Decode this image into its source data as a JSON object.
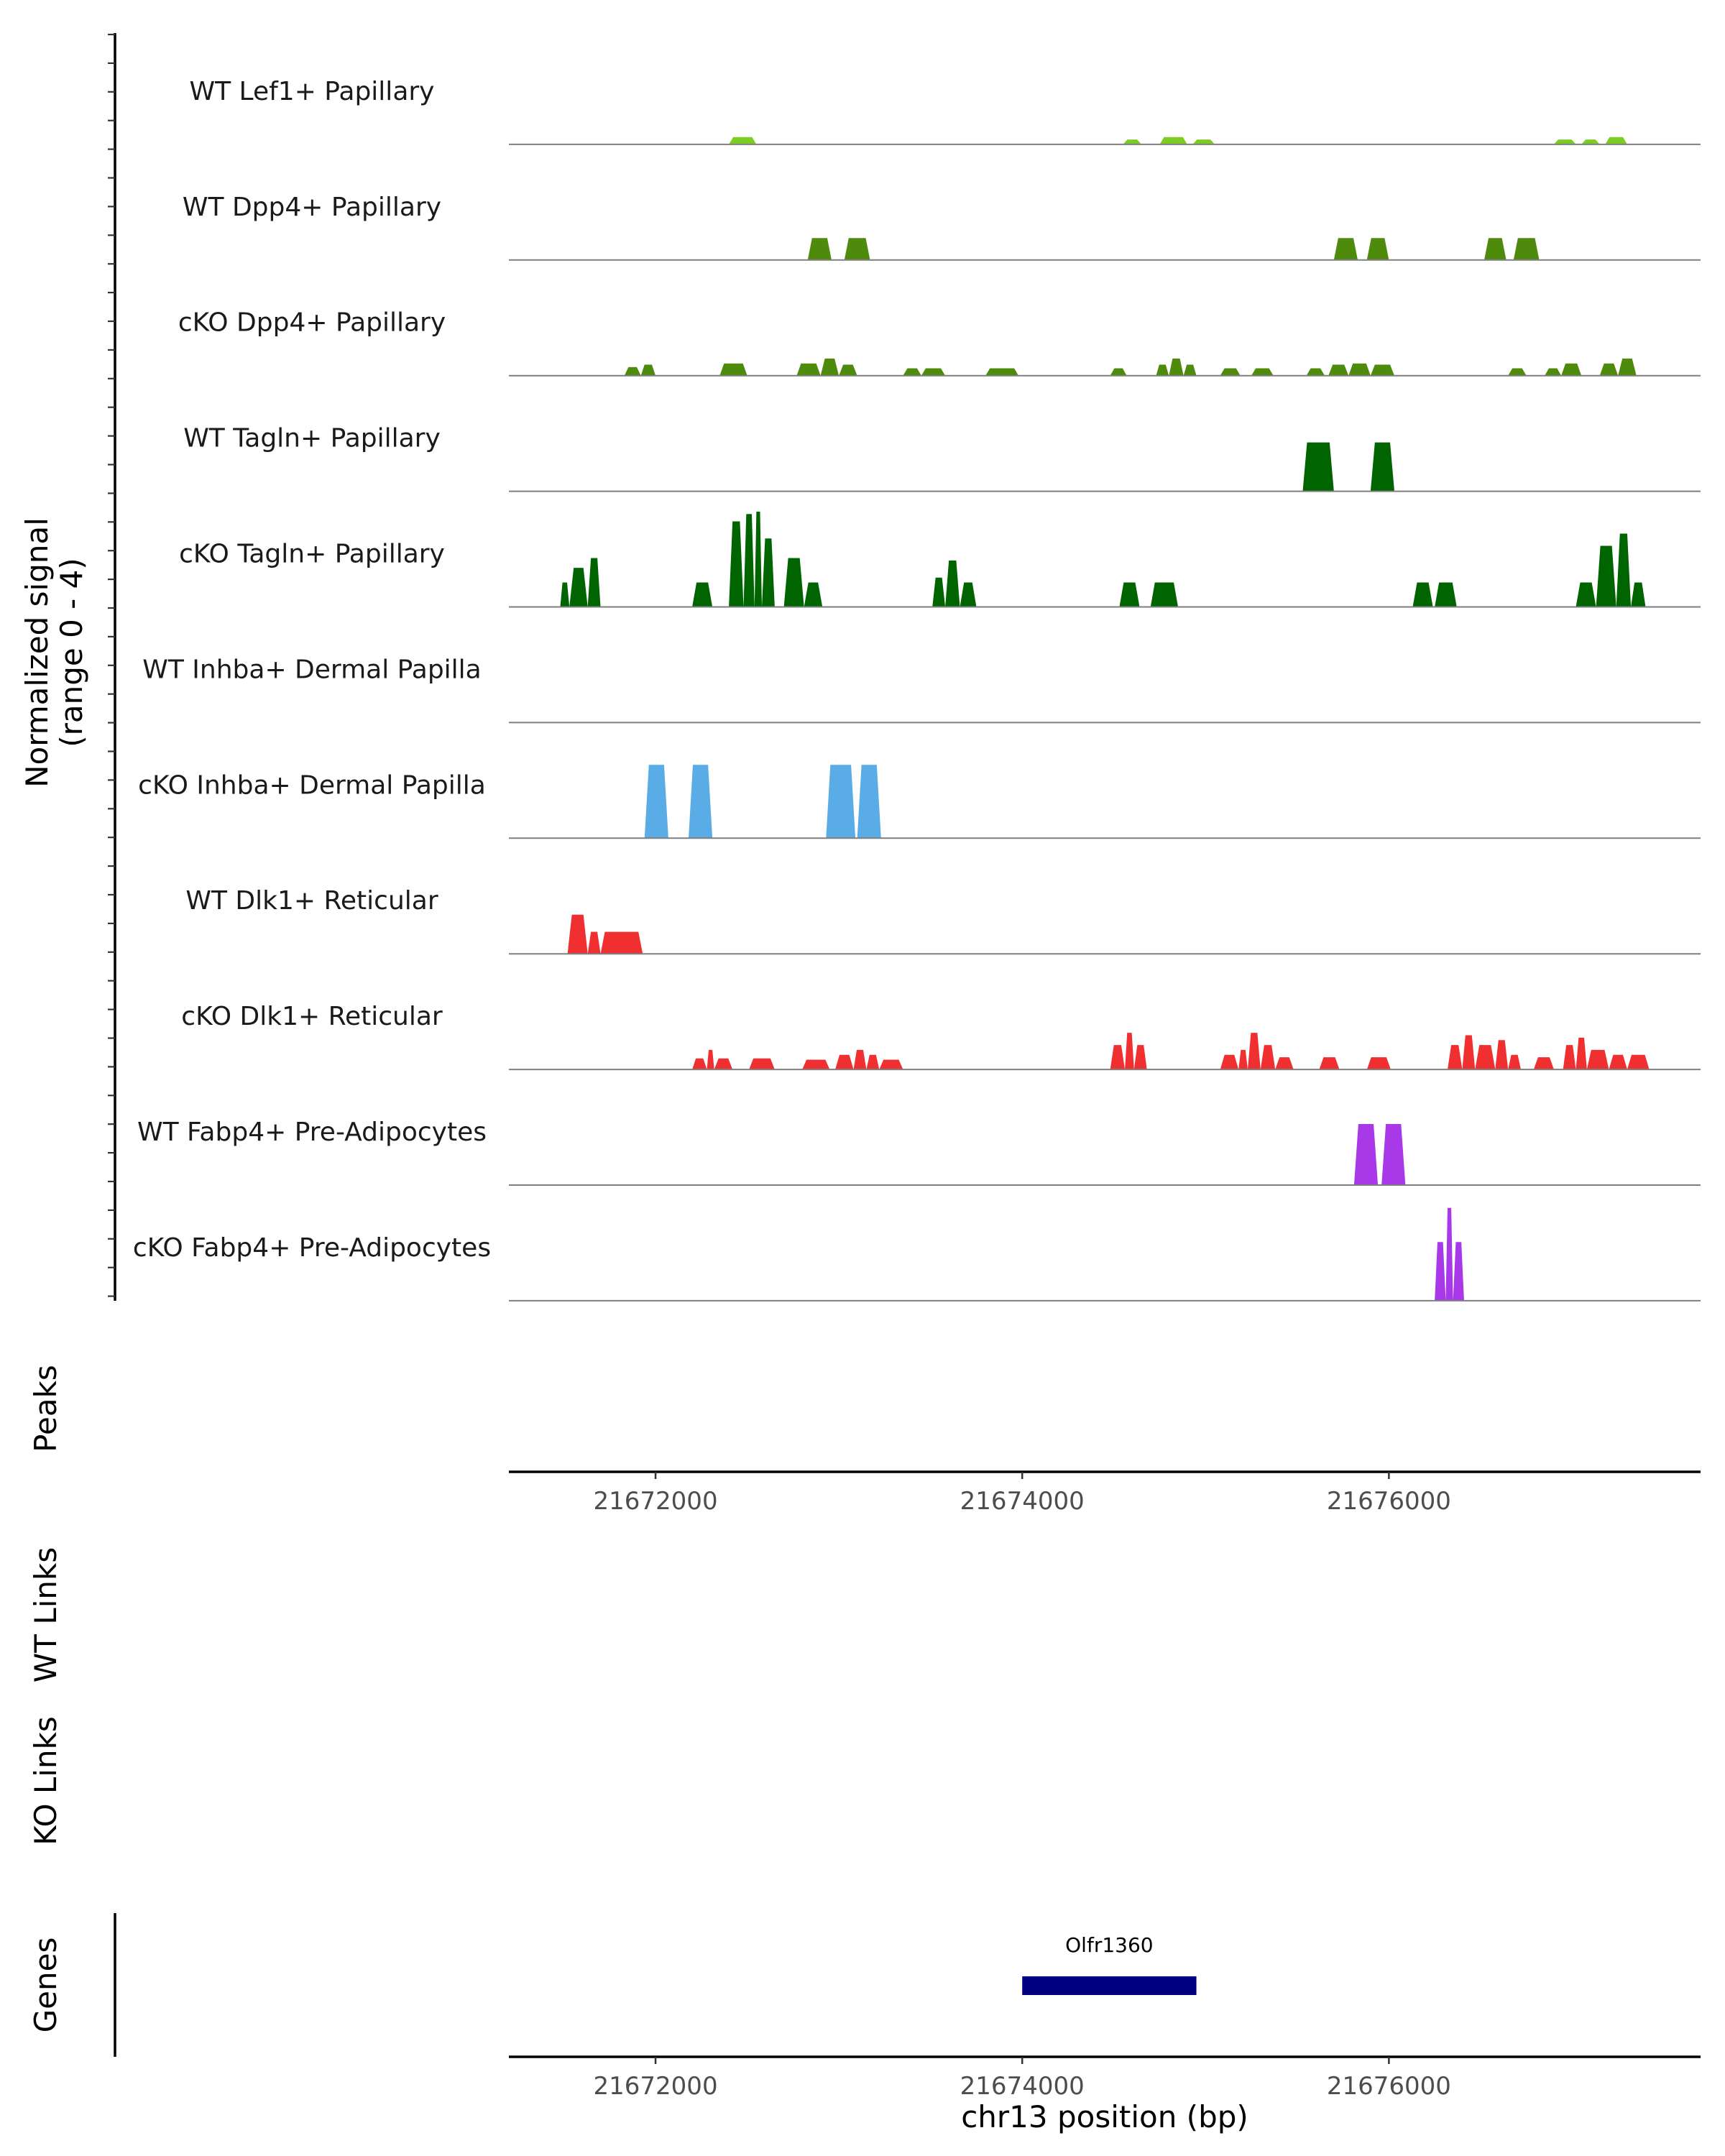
{
  "chart_data": {
    "type": "area",
    "title": "",
    "xlabel": "chr13 position (bp)",
    "xlim": [
      21671200,
      21677700
    ],
    "ylim": [
      0,
      4
    ],
    "x_ticks": [
      {
        "value": 21672000,
        "label": "21672000"
      },
      {
        "value": 21674000,
        "label": "21674000"
      },
      {
        "value": 21676000,
        "label": "21676000"
      }
    ],
    "signal_axis_label": [
      "Normalized signal",
      "(range 0 - 4)"
    ],
    "track_labels": {
      "peaks": "Peaks",
      "wt_links": "WT Links",
      "ko_links": "KO Links",
      "genes": "Genes"
    },
    "series": [
      {
        "name": "WT Lef1+ Papillary",
        "color": "#7CCD21",
        "peaks": [
          [
            21672400,
            21672550,
            0.3
          ],
          [
            21674550,
            21674650,
            0.2
          ],
          [
            21674750,
            21674900,
            0.3
          ],
          [
            21674930,
            21675050,
            0.2
          ],
          [
            21676900,
            21677020,
            0.2
          ],
          [
            21677050,
            21677150,
            0.2
          ],
          [
            21677180,
            21677300,
            0.3
          ]
        ]
      },
      {
        "name": "WT Dpp4+ Papillary",
        "color": "#4E8A0C",
        "peaks": [
          [
            21672830,
            21672960,
            0.9
          ],
          [
            21673030,
            21673170,
            0.9
          ],
          [
            21675700,
            21675830,
            0.9
          ],
          [
            21675880,
            21676000,
            0.9
          ],
          [
            21676520,
            21676640,
            0.9
          ],
          [
            21676680,
            21676820,
            0.9
          ]
        ]
      },
      {
        "name": "cKO Dpp4+ Papillary",
        "color": "#4E8A0C",
        "peaks": [
          [
            21671830,
            21671920,
            0.35
          ],
          [
            21671920,
            21672000,
            0.45
          ],
          [
            21672350,
            21672500,
            0.5
          ],
          [
            21672770,
            21672900,
            0.5
          ],
          [
            21672900,
            21673000,
            0.7
          ],
          [
            21673000,
            21673100,
            0.45
          ],
          [
            21673350,
            21673450,
            0.3
          ],
          [
            21673450,
            21673580,
            0.3
          ],
          [
            21673800,
            21673980,
            0.3
          ],
          [
            21674480,
            21674570,
            0.3
          ],
          [
            21674730,
            21674800,
            0.45
          ],
          [
            21674800,
            21674880,
            0.7
          ],
          [
            21674880,
            21674950,
            0.45
          ],
          [
            21675080,
            21675190,
            0.3
          ],
          [
            21675250,
            21675370,
            0.3
          ],
          [
            21675550,
            21675650,
            0.3
          ],
          [
            21675670,
            21675780,
            0.45
          ],
          [
            21675780,
            21675900,
            0.5
          ],
          [
            21675900,
            21676030,
            0.45
          ],
          [
            21676650,
            21676750,
            0.3
          ],
          [
            21676850,
            21676940,
            0.3
          ],
          [
            21676940,
            21677050,
            0.5
          ],
          [
            21677150,
            21677250,
            0.5
          ],
          [
            21677250,
            21677350,
            0.7
          ]
        ]
      },
      {
        "name": "WT Tagln+ Papillary",
        "color": "#006400",
        "peaks": [
          [
            21675530,
            21675700,
            2.0
          ],
          [
            21675900,
            21676030,
            2.0
          ]
        ]
      },
      {
        "name": "cKO Tagln+ Papillary",
        "color": "#006400",
        "peaks": [
          [
            21671480,
            21671530,
            1.0
          ],
          [
            21671530,
            21671630,
            1.6
          ],
          [
            21671630,
            21671700,
            2.0
          ],
          [
            21672200,
            21672310,
            1.0
          ],
          [
            21672400,
            21672480,
            3.5
          ],
          [
            21672480,
            21672540,
            3.8
          ],
          [
            21672540,
            21672580,
            3.9
          ],
          [
            21672580,
            21672650,
            2.8
          ],
          [
            21672700,
            21672810,
            2.0
          ],
          [
            21672810,
            21672910,
            1.0
          ],
          [
            21673510,
            21673580,
            1.2
          ],
          [
            21673580,
            21673660,
            1.9
          ],
          [
            21673660,
            21673750,
            1.0
          ],
          [
            21674530,
            21674640,
            1.0
          ],
          [
            21674700,
            21674850,
            1.0
          ],
          [
            21676130,
            21676240,
            1.0
          ],
          [
            21676250,
            21676370,
            1.0
          ],
          [
            21677020,
            21677130,
            1.0
          ],
          [
            21677130,
            21677240,
            2.5
          ],
          [
            21677240,
            21677320,
            3.0
          ],
          [
            21677320,
            21677400,
            1.0
          ]
        ]
      },
      {
        "name": "WT Inhba+ Dermal Papilla",
        "color": "#5AACE6",
        "peaks": []
      },
      {
        "name": "cKO Inhba+ Dermal Papilla",
        "color": "#5AACE6",
        "peaks": [
          [
            21671940,
            21672070,
            3.0
          ],
          [
            21672180,
            21672310,
            3.0
          ],
          [
            21672930,
            21673090,
            3.0
          ],
          [
            21673100,
            21673230,
            3.0
          ]
        ]
      },
      {
        "name": "WT Dlk1+ Reticular",
        "color": "#F03030",
        "peaks": [
          [
            21671520,
            21671630,
            1.6
          ],
          [
            21671630,
            21671700,
            0.9
          ],
          [
            21671700,
            21671930,
            0.9
          ]
        ]
      },
      {
        "name": "cKO Dlk1+ Reticular",
        "color": "#F03030",
        "peaks": [
          [
            21672200,
            21672280,
            0.45
          ],
          [
            21672280,
            21672320,
            0.8
          ],
          [
            21672320,
            21672420,
            0.45
          ],
          [
            21672510,
            21672650,
            0.45
          ],
          [
            21672800,
            21672950,
            0.4
          ],
          [
            21672980,
            21673080,
            0.6
          ],
          [
            21673080,
            21673150,
            0.8
          ],
          [
            21673150,
            21673220,
            0.6
          ],
          [
            21673220,
            21673350,
            0.4
          ],
          [
            21674480,
            21674560,
            1.0
          ],
          [
            21674560,
            21674610,
            1.5
          ],
          [
            21674610,
            21674680,
            1.0
          ],
          [
            21675080,
            21675180,
            0.6
          ],
          [
            21675180,
            21675230,
            0.8
          ],
          [
            21675230,
            21675300,
            1.5
          ],
          [
            21675300,
            21675380,
            1.0
          ],
          [
            21675380,
            21675480,
            0.5
          ],
          [
            21675620,
            21675730,
            0.5
          ],
          [
            21675880,
            21676010,
            0.5
          ],
          [
            21676320,
            21676400,
            1.0
          ],
          [
            21676400,
            21676470,
            1.4
          ],
          [
            21676470,
            21676580,
            1.0
          ],
          [
            21676580,
            21676650,
            1.2
          ],
          [
            21676650,
            21676720,
            0.6
          ],
          [
            21676790,
            21676900,
            0.5
          ],
          [
            21676950,
            21677020,
            1.0
          ],
          [
            21677020,
            21677080,
            1.3
          ],
          [
            21677080,
            21677200,
            0.8
          ],
          [
            21677200,
            21677300,
            0.6
          ],
          [
            21677300,
            21677420,
            0.6
          ]
        ]
      },
      {
        "name": "WT Fabp4+ Pre-Adipocytes",
        "color": "#A838E8",
        "peaks": [
          [
            21675810,
            21675940,
            2.5
          ],
          [
            21675960,
            21676090,
            2.5
          ]
        ]
      },
      {
        "name": "cKO Fabp4+ Pre-Adipocytes",
        "color": "#A838E8",
        "peaks": [
          [
            21676250,
            21676310,
            2.4
          ],
          [
            21676310,
            21676350,
            3.8
          ],
          [
            21676350,
            21676410,
            2.4
          ]
        ]
      }
    ],
    "genes": [
      {
        "name": "Olfr1360",
        "start": 21674000,
        "end": 21674950,
        "color": "#000080"
      }
    ]
  }
}
